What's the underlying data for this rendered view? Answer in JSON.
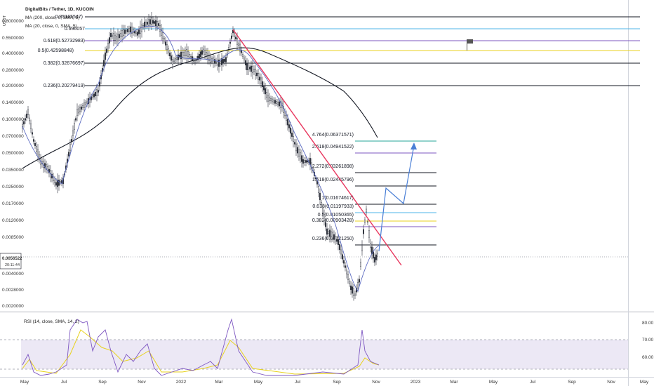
{
  "header": {
    "title": "DigitalBits / Tether, 1D, KUCOIN",
    "ma1": "MA (200, close, 0, SMA, 5)",
    "ma2": "MA (20, close, 0, SMA, 5)",
    "currency": "USDT"
  },
  "price_axis": {
    "ticks": [
      "0.8000000",
      "0.5500000",
      "0.4000000",
      "0.2800000",
      "0.2000000",
      "0.1400000",
      "0.1000000",
      "0.0700000",
      "0.0500000",
      "0.0350000",
      "0.0250000",
      "0.0170000",
      "0.0120000",
      "0.0085000",
      "0.0040000",
      "0.0028000",
      "0.0020000"
    ],
    "current_price": "0.0056522",
    "countdown": "20:11:44",
    "scale": "log"
  },
  "time_axis": {
    "ticks": [
      "May",
      "Jul",
      "Sep",
      "Nov",
      "2022",
      "Mar",
      "May",
      "Jul",
      "Sep",
      "Nov",
      "2023",
      "Mar",
      "May",
      "Jul",
      "Sep",
      "Nov",
      "May"
    ]
  },
  "fib_upper": [
    {
      "label": "0.85165547)",
      "color": "#131722"
    },
    {
      "label": "0.696057",
      "color": "#4db6e8"
    },
    {
      "label": "0.618(0.52732983)",
      "color": "#7e57c2"
    },
    {
      "label": "0.5(0.42598848)",
      "color": "#e8d21d"
    },
    {
      "label": "0.382(0.32676697)",
      "color": "#131722"
    },
    {
      "label": "0.236(0.20279419)",
      "color": "#131722"
    }
  ],
  "fib_lower": [
    {
      "label": "4.764(0.06371571)",
      "color": "#26a69a"
    },
    {
      "label": "2.618(0.04941522)",
      "color": "#7e57c2"
    },
    {
      "label": "2.272(0.03261898)",
      "color": "#131722"
    },
    {
      "label": "1.618(0.02445796)",
      "color": "#131722"
    },
    {
      "label": "1(0.01674617)",
      "color": "#131722"
    },
    {
      "label": "0.618(0.01197933)",
      "color": "#4db6e8"
    },
    {
      "label": "0.5(0.01050365)",
      "color": "#e8d21d"
    },
    {
      "label": "0.382(0.00903428)",
      "color": "#7e57c2"
    },
    {
      "label": "0.236(0.00721250)",
      "color": "#131722"
    }
  ],
  "rsi": {
    "label": "RSI (14, close, SMA, 14, 2)",
    "ticks": [
      "80.00",
      "70.00",
      "60.00"
    ]
  },
  "colors": {
    "trendline": "#e8365d",
    "projection": "#4a7fd6",
    "ma20": "#5c6bc0",
    "ma200": "#131722",
    "candles": "#2a2e39",
    "rsi_line": "#7e57c2",
    "rsi_ma": "#e8d21d",
    "rsi_band": "#ece8f5"
  },
  "chart_data": {
    "type": "candlestick",
    "title": "DigitalBits / Tether, 1D, KUCOIN",
    "xlabel": "",
    "ylabel": "",
    "y_scale": "log",
    "series": [
      {
        "name": "MA (200, close, 0, SMA, 5)"
      },
      {
        "name": "MA (20, close, 0, SMA, 5)"
      }
    ],
    "fib_levels_upper": [
      0.85165547,
      0.696057,
      0.52732983,
      0.42598848,
      0.32676697,
      0.20279419
    ],
    "fib_levels_lower": [
      0.06371571,
      0.04941522,
      0.03261898,
      0.02445796,
      0.01674617,
      0.01197933,
      0.01050365,
      0.00903428,
      0.0072125
    ],
    "last_price": 0.0056522
  }
}
